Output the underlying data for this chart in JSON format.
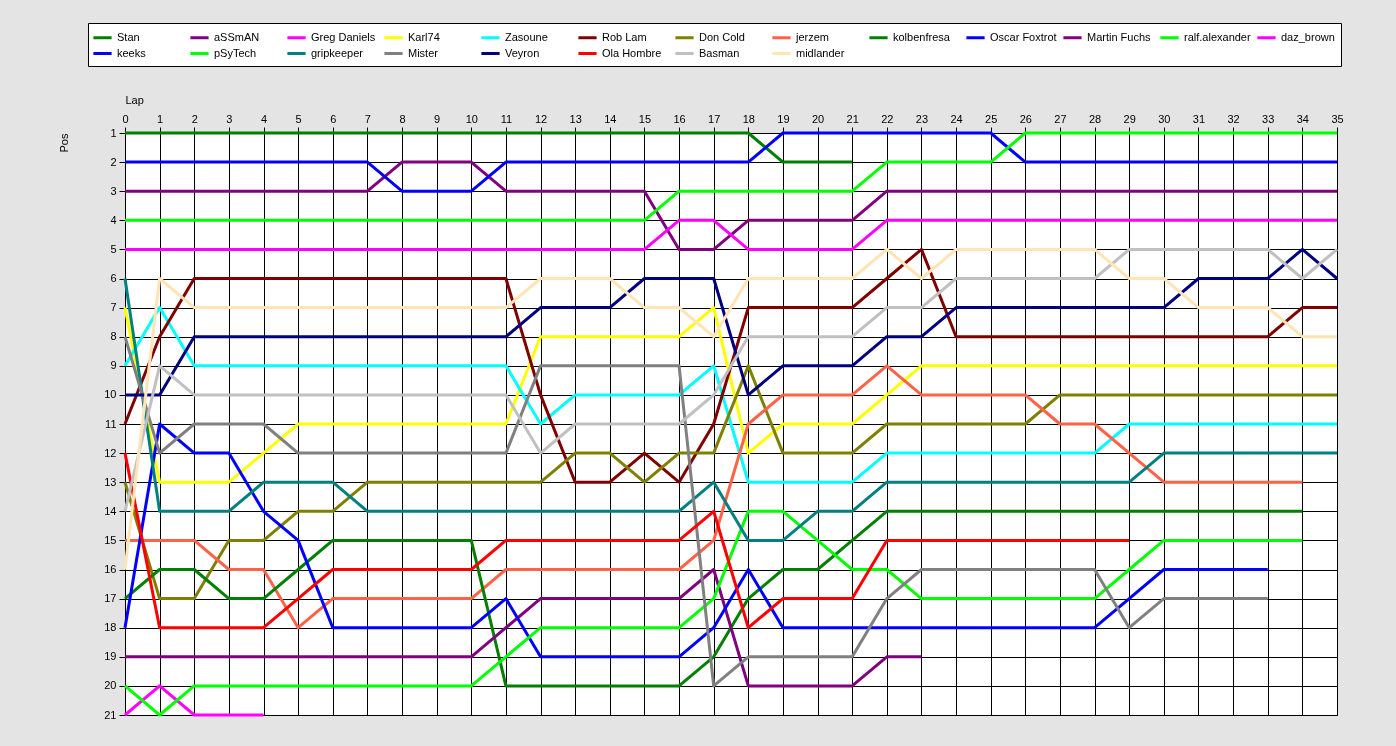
{
  "chart_data": {
    "type": "line",
    "xlabel": "Lap",
    "ylabel": "Pos",
    "x": [
      0,
      1,
      2,
      3,
      4,
      5,
      6,
      7,
      8,
      9,
      10,
      11,
      12,
      13,
      14,
      15,
      16,
      17,
      18,
      19,
      20,
      21,
      22,
      23,
      24,
      25,
      26,
      27,
      28,
      29,
      30,
      31,
      32,
      33,
      34,
      35
    ],
    "xlim": [
      0,
      35
    ],
    "ylim": [
      21,
      1
    ],
    "xticks": [
      0,
      1,
      2,
      3,
      4,
      5,
      6,
      7,
      8,
      9,
      10,
      11,
      12,
      13,
      14,
      15,
      16,
      17,
      18,
      19,
      20,
      21,
      22,
      23,
      24,
      25,
      26,
      27,
      28,
      29,
      30,
      31,
      32,
      33,
      34,
      35
    ],
    "yticks": [
      1,
      2,
      3,
      4,
      5,
      6,
      7,
      8,
      9,
      10,
      11,
      12,
      13,
      14,
      15,
      16,
      17,
      18,
      19,
      20,
      21
    ],
    "grid": true,
    "legend": "top",
    "line_style": "solid",
    "series": [
      {
        "name": "Stan",
        "color": "#008000",
        "values": [
          1,
          1,
          1,
          1,
          1,
          1,
          1,
          1,
          1,
          1,
          1,
          1,
          1,
          1,
          1,
          1,
          1,
          1,
          1,
          2,
          2,
          2,
          null,
          null,
          null,
          null,
          null,
          null,
          null,
          null,
          null,
          null,
          null,
          null,
          null,
          null
        ]
      },
      {
        "name": "aSSmAN",
        "color": "#800080",
        "values": [
          3,
          3,
          3,
          3,
          3,
          3,
          3,
          3,
          2,
          2,
          2,
          3,
          3,
          3,
          3,
          3,
          5,
          5,
          4,
          4,
          4,
          4,
          3,
          3,
          3,
          3,
          3,
          3,
          3,
          3,
          3,
          3,
          3,
          3,
          3,
          3
        ]
      },
      {
        "name": "Greg Daniels",
        "color": "#ff00ff",
        "values": [
          5,
          5,
          5,
          5,
          5,
          5,
          5,
          5,
          5,
          5,
          5,
          5,
          5,
          5,
          5,
          5,
          4,
          4,
          5,
          5,
          5,
          5,
          4,
          4,
          4,
          4,
          4,
          4,
          4,
          4,
          4,
          4,
          4,
          4,
          4,
          4
        ]
      },
      {
        "name": "Karl74",
        "color": "#ffff00",
        "values": [
          7,
          13,
          13,
          13,
          12,
          11,
          11,
          11,
          11,
          11,
          11,
          11,
          8,
          8,
          8,
          8,
          8,
          7,
          12,
          11,
          11,
          11,
          10,
          9,
          9,
          9,
          9,
          9,
          9,
          9,
          9,
          9,
          9,
          9,
          9,
          9
        ]
      },
      {
        "name": "Zasoune",
        "color": "#00ffff",
        "values": [
          9,
          7,
          9,
          9,
          9,
          9,
          9,
          9,
          9,
          9,
          9,
          9,
          11,
          10,
          10,
          10,
          10,
          9,
          13,
          13,
          13,
          13,
          12,
          12,
          12,
          12,
          12,
          12,
          12,
          11,
          11,
          11,
          11,
          11,
          11,
          11
        ]
      },
      {
        "name": "Rob Lam",
        "color": "#800000",
        "values": [
          11,
          8,
          6,
          6,
          6,
          6,
          6,
          6,
          6,
          6,
          6,
          6,
          10,
          13,
          13,
          12,
          13,
          11,
          7,
          7,
          7,
          7,
          6,
          5,
          8,
          8,
          8,
          8,
          8,
          8,
          8,
          8,
          8,
          8,
          7,
          7
        ]
      },
      {
        "name": "Don Cold",
        "color": "#808000",
        "values": [
          13,
          17,
          17,
          15,
          15,
          14,
          14,
          13,
          13,
          13,
          13,
          13,
          13,
          12,
          12,
          13,
          12,
          12,
          9,
          12,
          12,
          12,
          11,
          11,
          11,
          11,
          11,
          10,
          10,
          10,
          10,
          10,
          10,
          10,
          10,
          10
        ]
      },
      {
        "name": "jerzem",
        "color": "#ff6347",
        "values": [
          15,
          15,
          15,
          16,
          16,
          18,
          17,
          17,
          17,
          17,
          17,
          16,
          16,
          16,
          16,
          16,
          16,
          15,
          11,
          10,
          10,
          10,
          9,
          10,
          10,
          10,
          10,
          11,
          11,
          12,
          13,
          13,
          13,
          13,
          13,
          null
        ]
      },
      {
        "name": "kolbenfresa",
        "color": "#008000",
        "values": [
          17,
          16,
          16,
          17,
          17,
          16,
          15,
          15,
          15,
          15,
          15,
          20,
          20,
          20,
          20,
          20,
          20,
          19,
          17,
          16,
          16,
          15,
          14,
          14,
          14,
          14,
          14,
          14,
          14,
          14,
          14,
          14,
          14,
          14,
          14,
          null
        ]
      },
      {
        "name": "Oscar Foxtrot",
        "color": "#0000ff",
        "values": [
          2,
          2,
          2,
          2,
          2,
          2,
          2,
          2,
          3,
          3,
          3,
          2,
          2,
          2,
          2,
          2,
          2,
          2,
          2,
          1,
          1,
          1,
          1,
          1,
          1,
          1,
          2,
          2,
          2,
          2,
          2,
          2,
          2,
          2,
          2,
          2
        ]
      },
      {
        "name": "Martin Fuchs",
        "color": "#800080",
        "values": [
          19,
          19,
          19,
          19,
          19,
          19,
          19,
          19,
          19,
          19,
          19,
          18,
          17,
          17,
          17,
          17,
          17,
          16,
          20,
          20,
          20,
          20,
          19,
          19,
          null,
          null,
          null,
          null,
          null,
          null,
          null,
          null,
          null,
          null,
          null,
          null
        ]
      },
      {
        "name": "ralf.alexander",
        "color": "#00ff00",
        "values": [
          4,
          4,
          4,
          4,
          4,
          4,
          4,
          4,
          4,
          4,
          4,
          4,
          4,
          4,
          4,
          4,
          3,
          3,
          3,
          3,
          3,
          3,
          2,
          2,
          2,
          2,
          1,
          1,
          1,
          1,
          1,
          1,
          1,
          1,
          1,
          1
        ]
      },
      {
        "name": "daz_brown",
        "color": "#ff00ff",
        "values": [
          21,
          20,
          21,
          21,
          21,
          null,
          null,
          null,
          null,
          null,
          null,
          null,
          null,
          null,
          null,
          null,
          null,
          null,
          null,
          null,
          null,
          null,
          null,
          null,
          null,
          null,
          null,
          null,
          null,
          null,
          null,
          null,
          null,
          null,
          null,
          null
        ]
      },
      {
        "name": "keeks",
        "color": "#0000ff",
        "values": [
          18,
          11,
          12,
          12,
          14,
          15,
          18,
          18,
          18,
          18,
          18,
          17,
          19,
          19,
          19,
          19,
          19,
          18,
          16,
          18,
          18,
          18,
          18,
          18,
          18,
          18,
          18,
          18,
          18,
          17,
          16,
          16,
          16,
          16,
          null,
          null
        ]
      },
      {
        "name": "pSyTech",
        "color": "#00ff00",
        "values": [
          20,
          21,
          20,
          20,
          20,
          20,
          20,
          20,
          20,
          20,
          20,
          19,
          18,
          18,
          18,
          18,
          18,
          17,
          14,
          14,
          15,
          16,
          16,
          17,
          17,
          17,
          17,
          17,
          17,
          16,
          15,
          15,
          15,
          15,
          15,
          null
        ]
      },
      {
        "name": "gripkeeper",
        "color": "#008080",
        "values": [
          6,
          14,
          14,
          14,
          13,
          13,
          13,
          14,
          14,
          14,
          14,
          14,
          14,
          14,
          14,
          14,
          14,
          13,
          15,
          15,
          14,
          14,
          13,
          13,
          13,
          13,
          13,
          13,
          13,
          13,
          12,
          12,
          12,
          12,
          12,
          12
        ]
      },
      {
        "name": "Mister",
        "color": "#808080",
        "values": [
          8,
          12,
          11,
          11,
          11,
          12,
          12,
          12,
          12,
          12,
          12,
          12,
          9,
          9,
          9,
          9,
          9,
          20,
          19,
          19,
          19,
          19,
          17,
          16,
          16,
          16,
          16,
          16,
          16,
          18,
          17,
          17,
          17,
          17,
          null,
          null
        ]
      },
      {
        "name": "Veyron",
        "color": "#000080",
        "values": [
          10,
          10,
          8,
          8,
          8,
          8,
          8,
          8,
          8,
          8,
          8,
          8,
          7,
          7,
          7,
          6,
          6,
          6,
          10,
          9,
          9,
          9,
          8,
          8,
          7,
          7,
          7,
          7,
          7,
          7,
          7,
          6,
          6,
          6,
          5,
          6
        ]
      },
      {
        "name": "Ola Hombre",
        "color": "#ff0000",
        "values": [
          12,
          18,
          18,
          18,
          18,
          17,
          16,
          16,
          16,
          16,
          16,
          15,
          15,
          15,
          15,
          15,
          15,
          14,
          18,
          17,
          17,
          17,
          15,
          15,
          15,
          15,
          15,
          15,
          15,
          15,
          null,
          null,
          null,
          null,
          null,
          null
        ]
      },
      {
        "name": "Basman",
        "color": "#c0c0c0",
        "values": [
          14,
          9,
          10,
          10,
          10,
          10,
          10,
          10,
          10,
          10,
          10,
          10,
          12,
          11,
          11,
          11,
          11,
          10,
          8,
          8,
          8,
          8,
          7,
          7,
          6,
          6,
          6,
          6,
          6,
          5,
          5,
          5,
          5,
          5,
          6,
          5
        ]
      },
      {
        "name": "midlander",
        "color": "#ffe4b5",
        "values": [
          16,
          6,
          7,
          7,
          7,
          7,
          7,
          7,
          7,
          7,
          7,
          7,
          6,
          6,
          6,
          7,
          7,
          8,
          6,
          6,
          6,
          6,
          5,
          6,
          5,
          5,
          5,
          5,
          5,
          6,
          6,
          7,
          7,
          7,
          8,
          8
        ]
      }
    ]
  }
}
